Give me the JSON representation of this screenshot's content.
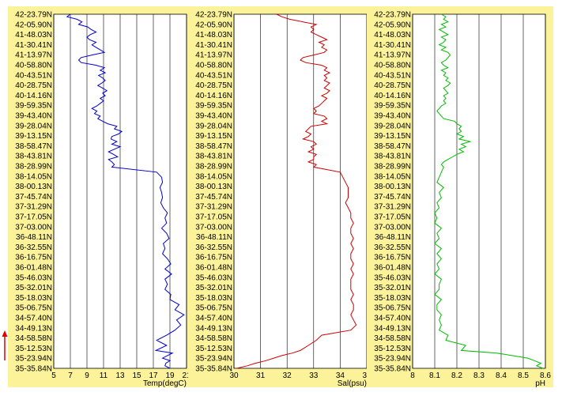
{
  "chart_data": [
    {
      "type": "line",
      "title": "",
      "xlabel": "Temp(degC)",
      "ylabel": "",
      "xlim": [
        5,
        21
      ],
      "xticks": [
        "5",
        "7",
        "9",
        "11",
        "13",
        "15",
        "17",
        "19",
        "21"
      ],
      "color": "#0000cc",
      "series": [
        {
          "name": "",
          "x": [
            7.0,
            6.6,
            7.8,
            8.4,
            8.0,
            9.1,
            9.5,
            10.1,
            9.4,
            9.0,
            9.3,
            10.1,
            9.6,
            10.1,
            10.6,
            11.1,
            9.6,
            8.3,
            8.0,
            8.3,
            10.1,
            11.1,
            10.6,
            11.2,
            10.4,
            10.9,
            11.2,
            10.8,
            10.3,
            10.9,
            11.4,
            10.9,
            11.2,
            10.6,
            11.0,
            10.6,
            10.2,
            9.6,
            10.2,
            9.9,
            10.6,
            10.3,
            10.9,
            11.5,
            12.6,
            12.3,
            13.2,
            12.8,
            12.0,
            11.9,
            12.6,
            12.0,
            13.0,
            12.3,
            11.6,
            12.2,
            12.7,
            11.6,
            12.0,
            12.3,
            12.0,
            17.4,
            18.0,
            18.1,
            17.8,
            18.0,
            18.1,
            17.9,
            18.2,
            18.7,
            18.4,
            18.6,
            18.0,
            18.6,
            18.9,
            18.2,
            18.4,
            18.1,
            18.7,
            19.1,
            18.4,
            19.2,
            18.4,
            18.7,
            18.4,
            19.1,
            19.0,
            20.1,
            19.6,
            20.7,
            19.8,
            20.3,
            19.6,
            18.6,
            17.4,
            18.6,
            17.3,
            19.3,
            18.7,
            18.1,
            19.0,
            18.5,
            18.4,
            19.0
          ],
          "y": [
            42.4,
            42.35,
            42.3,
            42.25,
            42.2,
            42.15,
            42.1,
            42.05,
            42.0,
            41.95,
            41.9,
            41.85,
            41.8,
            41.75,
            41.7,
            41.65,
            41.6,
            41.55,
            41.5,
            41.45,
            41.4,
            41.35,
            41.3,
            41.25,
            41.2,
            41.15,
            41.1,
            41.05,
            41.0,
            40.95,
            40.9,
            40.85,
            40.8,
            40.75,
            40.7,
            40.65,
            40.6,
            40.55,
            40.5,
            40.45,
            40.4,
            40.35,
            40.3,
            40.25,
            40.2,
            40.15,
            40.1,
            40.05,
            40.0,
            39.95,
            39.9,
            39.85,
            39.8,
            39.75,
            39.7,
            39.65,
            39.6,
            39.55,
            39.5,
            39.45,
            39.4,
            39.3,
            39.2,
            39.1,
            39.0,
            38.9,
            38.8,
            38.7,
            38.6,
            38.5,
            38.4,
            38.3,
            38.2,
            38.1,
            38.0,
            37.9,
            37.8,
            37.7,
            37.6,
            37.5,
            37.4,
            37.3,
            37.2,
            37.1,
            37.0,
            36.9,
            36.8,
            36.7,
            36.6,
            36.5,
            36.4,
            36.3,
            36.2,
            36.1,
            36.0,
            35.9,
            35.8,
            35.75,
            35.7,
            35.65,
            35.6,
            35.55,
            35.5,
            35.45
          ]
        }
      ]
    },
    {
      "type": "line",
      "title": "",
      "xlabel": "Sal(psu)",
      "ylabel": "",
      "xlim": [
        30,
        35
      ],
      "xticks": [
        "30",
        "31",
        "32",
        "33",
        "34",
        "35"
      ],
      "color": "#cc0000",
      "series": [
        {
          "name": "",
          "x": [
            31.6,
            31.8,
            32.1,
            32.6,
            33.1,
            32.9,
            33.0,
            32.9,
            33.1,
            33.3,
            33.5,
            33.2,
            33.4,
            33.3,
            33.5,
            33.4,
            33.0,
            32.6,
            32.5,
            32.7,
            33.3,
            33.5,
            33.4,
            33.6,
            33.4,
            33.5,
            33.4,
            33.6,
            33.5,
            33.4,
            33.6,
            33.5,
            33.3,
            33.5,
            33.4,
            33.3,
            33.2,
            33.0,
            33.1,
            33.0,
            33.4,
            33.5,
            33.3,
            33.5,
            32.9,
            32.8,
            32.7,
            32.9,
            32.8,
            32.6,
            33.0,
            33.1,
            32.9,
            33.0,
            32.8,
            33.1,
            33.0,
            33.0,
            32.8,
            33.1,
            33.0,
            34.0,
            34.1,
            34.2,
            34.3,
            34.3,
            34.3,
            34.2,
            34.3,
            34.4,
            34.4,
            34.5,
            34.4,
            34.4,
            34.5,
            34.4,
            34.5,
            34.4,
            34.4,
            34.5,
            34.4,
            34.5,
            34.4,
            34.4,
            34.4,
            34.5,
            34.4,
            34.5,
            34.5,
            34.4,
            34.5,
            34.6,
            34.4,
            33.3,
            33.1,
            32.8,
            32.5,
            32.2,
            31.8,
            31.5,
            31.2,
            30.8,
            30.5,
            30.1
          ],
          "y": [
            42.4,
            42.35,
            42.3,
            42.25,
            42.2,
            42.15,
            42.1,
            42.05,
            42.0,
            41.95,
            41.9,
            41.85,
            41.8,
            41.75,
            41.7,
            41.65,
            41.6,
            41.55,
            41.5,
            41.45,
            41.4,
            41.35,
            41.3,
            41.25,
            41.2,
            41.15,
            41.1,
            41.05,
            41.0,
            40.95,
            40.9,
            40.85,
            40.8,
            40.75,
            40.7,
            40.65,
            40.6,
            40.55,
            40.5,
            40.45,
            40.4,
            40.35,
            40.3,
            40.25,
            40.2,
            40.15,
            40.1,
            40.05,
            40.0,
            39.95,
            39.9,
            39.85,
            39.8,
            39.75,
            39.7,
            39.65,
            39.6,
            39.55,
            39.5,
            39.45,
            39.4,
            39.3,
            39.2,
            39.1,
            39.0,
            38.9,
            38.8,
            38.7,
            38.6,
            38.5,
            38.4,
            38.3,
            38.2,
            38.1,
            38.0,
            37.9,
            37.8,
            37.7,
            37.6,
            37.5,
            37.4,
            37.3,
            37.2,
            37.1,
            37.0,
            36.9,
            36.8,
            36.7,
            36.6,
            36.5,
            36.4,
            36.3,
            36.2,
            36.1,
            36.0,
            35.9,
            35.8,
            35.75,
            35.7,
            35.65,
            35.6,
            35.55,
            35.5,
            35.45
          ]
        }
      ]
    },
    {
      "type": "line",
      "title": "",
      "xlabel": "pH",
      "ylabel": "",
      "xlim": [
        8,
        8.6
      ],
      "xticks": [
        "8",
        "8.1",
        "8.2",
        "8.3",
        "8.4",
        "8.5",
        "8.6"
      ],
      "color": "#00bb00",
      "series": [
        {
          "name": "",
          "x": [
            8.13,
            8.15,
            8.14,
            8.16,
            8.13,
            8.15,
            8.12,
            8.14,
            8.16,
            8.13,
            8.15,
            8.14,
            8.12,
            8.15,
            8.13,
            8.16,
            8.17,
            8.16,
            8.15,
            8.13,
            8.14,
            8.16,
            8.13,
            8.15,
            8.14,
            8.16,
            8.15,
            8.17,
            8.16,
            8.14,
            8.15,
            8.16,
            8.14,
            8.15,
            8.14,
            8.15,
            8.13,
            8.12,
            8.11,
            8.12,
            8.13,
            8.14,
            8.19,
            8.2,
            8.22,
            8.21,
            8.22,
            8.2,
            8.23,
            8.21,
            8.26,
            8.22,
            8.24,
            8.21,
            8.23,
            8.2,
            8.18,
            8.16,
            8.14,
            8.13,
            8.14,
            8.13,
            8.12,
            8.11,
            8.14,
            8.12,
            8.13,
            8.11,
            8.12,
            8.1,
            8.11,
            8.1,
            8.13,
            8.11,
            8.12,
            8.1,
            8.13,
            8.11,
            8.13,
            8.11,
            8.12,
            8.1,
            8.13,
            8.12,
            8.12,
            8.1,
            8.13,
            8.11,
            8.11,
            8.13,
            8.12,
            8.13,
            8.12,
            8.16,
            8.15,
            8.24,
            8.22,
            8.38,
            8.45,
            8.52,
            8.55,
            8.58,
            8.56,
            8.59
          ],
          "y": [
            42.4,
            42.35,
            42.3,
            42.25,
            42.2,
            42.15,
            42.1,
            42.05,
            42.0,
            41.95,
            41.9,
            41.85,
            41.8,
            41.75,
            41.7,
            41.65,
            41.6,
            41.55,
            41.5,
            41.45,
            41.4,
            41.35,
            41.3,
            41.25,
            41.2,
            41.15,
            41.1,
            41.05,
            41.0,
            40.95,
            40.9,
            40.85,
            40.8,
            40.75,
            40.7,
            40.65,
            40.6,
            40.55,
            40.5,
            40.45,
            40.4,
            40.35,
            40.3,
            40.25,
            40.2,
            40.15,
            40.1,
            40.05,
            40.0,
            39.95,
            39.9,
            39.85,
            39.8,
            39.75,
            39.7,
            39.65,
            39.6,
            39.55,
            39.5,
            39.45,
            39.4,
            39.3,
            39.2,
            39.1,
            39.0,
            38.9,
            38.8,
            38.7,
            38.6,
            38.5,
            38.4,
            38.3,
            38.2,
            38.1,
            38.0,
            37.9,
            37.8,
            37.7,
            37.6,
            37.5,
            37.4,
            37.3,
            37.2,
            37.1,
            37.0,
            36.9,
            36.8,
            36.7,
            36.6,
            36.5,
            36.4,
            36.3,
            36.2,
            36.1,
            36.0,
            35.9,
            35.8,
            35.75,
            35.7,
            35.65,
            35.6,
            35.55,
            35.5,
            35.45
          ]
        }
      ]
    }
  ],
  "latitudes": [
    "42-23.79N",
    "42-05.90N",
    "41-48.03N",
    "41-30.41N",
    "41-13.97N",
    "40-58.80N",
    "40-43.51N",
    "40-28.75N",
    "40-14.16N",
    "39-59.35N",
    "39-43.40N",
    "39-28.04N",
    "39-13.15N",
    "38-58.47N",
    "38-43.81N",
    "38-28.99N",
    "38-14.05N",
    "38-00.13N",
    "37-45.74N",
    "37-31.29N",
    "37-17.05N",
    "37-03.00N",
    "36-48.11N",
    "36-32.55N",
    "36-16.75N",
    "36-01.48N",
    "35-46.03N",
    "35-32.01N",
    "35-18.03N",
    "35-06.75N",
    "34-57.40N",
    "34-49.13N",
    "34-58.58N",
    "35-12.53N",
    "35-23.94N",
    "35-35.84N"
  ],
  "colors": {
    "frame": "#fbf29a",
    "plot_bg": "#ffffff",
    "grid": "#000000",
    "arrow": "#e00000"
  }
}
